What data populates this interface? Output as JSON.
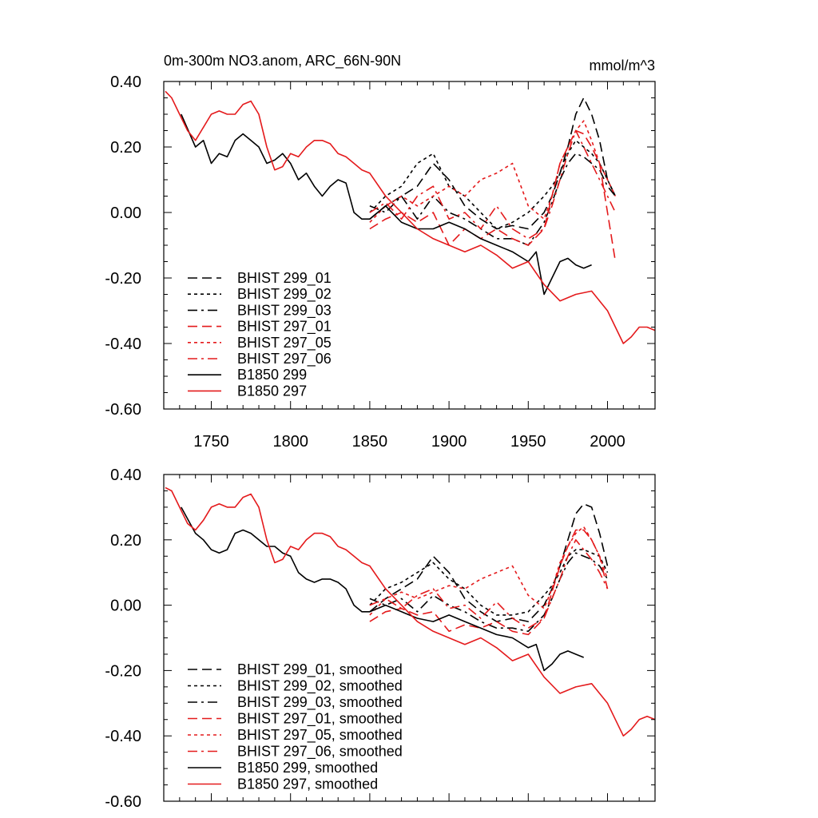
{
  "chart_data": [
    {
      "type": "line",
      "title": "0m-300m NO3.anom, ARC_66N-90N",
      "units": "mmol/m^3",
      "xlabel": "",
      "ylabel": "",
      "xlim": [
        1720,
        2030
      ],
      "ylim": [
        -0.6,
        0.4
      ],
      "xticks": [
        1750,
        1800,
        1850,
        1900,
        1950,
        2000
      ],
      "xtick_labels": [
        "1750",
        "1800",
        "1850",
        "1900",
        "1950",
        "2000"
      ],
      "yticks": [
        0.4,
        0.2,
        0.0,
        -0.2,
        -0.4,
        -0.6
      ],
      "ytick_labels": [
        "0.40",
        "0.20",
        "0.00",
        "-0.20",
        "-0.40",
        "-0.60"
      ],
      "legend_position": "bottom-left",
      "series": [
        {
          "name": "BHIST 299_01",
          "color": "#000000",
          "dash": "long-dash",
          "x": [
            1850,
            1860,
            1870,
            1880,
            1890,
            1900,
            1910,
            1920,
            1930,
            1940,
            1950,
            1960,
            1965,
            1970,
            1975,
            1980,
            1985,
            1990,
            1995,
            2000,
            2005
          ],
          "y": [
            -0.02,
            0.02,
            0.05,
            0.08,
            0.15,
            0.1,
            0.02,
            -0.02,
            -0.05,
            -0.04,
            -0.05,
            0.0,
            0.05,
            0.12,
            0.2,
            0.3,
            0.35,
            0.3,
            0.22,
            0.1,
            0.05
          ]
        },
        {
          "name": "BHIST 299_02",
          "color": "#000000",
          "dash": "short-dash",
          "x": [
            1850,
            1860,
            1870,
            1880,
            1890,
            1900,
            1910,
            1920,
            1930,
            1940,
            1950,
            1960,
            1965,
            1970,
            1975,
            1980,
            1985,
            1990,
            1995,
            2000,
            2005
          ],
          "y": [
            0.0,
            0.05,
            0.08,
            0.15,
            0.18,
            0.08,
            0.05,
            0.0,
            -0.05,
            -0.03,
            0.0,
            0.05,
            0.08,
            0.12,
            0.18,
            0.22,
            0.2,
            0.18,
            0.15,
            0.1,
            0.05
          ]
        },
        {
          "name": "BHIST 299_03",
          "color": "#000000",
          "dash": "dash-dot",
          "x": [
            1850,
            1860,
            1870,
            1880,
            1890,
            1900,
            1910,
            1920,
            1930,
            1940,
            1950,
            1960,
            1965,
            1970,
            1975,
            1980,
            1985,
            1990,
            1995,
            2000,
            2005
          ],
          "y": [
            0.02,
            0.0,
            0.05,
            -0.02,
            0.05,
            0.0,
            -0.02,
            -0.05,
            -0.08,
            -0.08,
            -0.1,
            -0.03,
            0.03,
            0.1,
            0.15,
            0.18,
            0.17,
            0.15,
            0.13,
            0.08,
            0.05
          ]
        },
        {
          "name": "BHIST 297_01",
          "color": "#e41a1c",
          "dash": "long-dash",
          "x": [
            1850,
            1860,
            1870,
            1880,
            1890,
            1900,
            1910,
            1920,
            1930,
            1940,
            1950,
            1960,
            1965,
            1970,
            1975,
            1980,
            1985,
            1990,
            1995,
            2000,
            2005
          ],
          "y": [
            -0.05,
            -0.02,
            0.0,
            -0.03,
            0.0,
            -0.1,
            -0.05,
            -0.08,
            -0.05,
            -0.08,
            -0.1,
            -0.05,
            0.05,
            0.15,
            0.2,
            0.25,
            0.24,
            0.2,
            0.15,
            0.0,
            -0.15
          ]
        },
        {
          "name": "BHIST 297_05",
          "color": "#e41a1c",
          "dash": "short-dash",
          "x": [
            1850,
            1860,
            1870,
            1880,
            1890,
            1900,
            1910,
            1920,
            1930,
            1940,
            1950,
            1960,
            1965,
            1970,
            1975,
            1980,
            1985,
            1990,
            1995,
            2000,
            2005
          ],
          "y": [
            -0.03,
            0.02,
            0.05,
            0.02,
            0.05,
            0.08,
            0.05,
            0.1,
            0.12,
            0.15,
            0.02,
            -0.02,
            0.05,
            0.15,
            0.2,
            0.25,
            0.28,
            0.22,
            0.15,
            0.1,
            0.05
          ]
        },
        {
          "name": "BHIST 297_06",
          "color": "#e41a1c",
          "dash": "dash-dot",
          "x": [
            1850,
            1860,
            1870,
            1880,
            1890,
            1900,
            1910,
            1920,
            1930,
            1940,
            1950,
            1960,
            1965,
            1970,
            1975,
            1980,
            1985,
            1990,
            1995,
            2000,
            2005
          ],
          "y": [
            0.0,
            0.03,
            -0.02,
            0.05,
            0.08,
            -0.02,
            0.0,
            -0.05,
            0.02,
            -0.05,
            -0.08,
            -0.05,
            0.02,
            0.1,
            0.18,
            0.25,
            0.2,
            0.15,
            0.1,
            0.05,
            0.0
          ]
        },
        {
          "name": "B1850 299",
          "color": "#000000",
          "dash": "solid",
          "x": [
            1731,
            1740,
            1745,
            1750,
            1755,
            1760,
            1765,
            1770,
            1775,
            1780,
            1785,
            1790,
            1795,
            1800,
            1805,
            1810,
            1815,
            1820,
            1825,
            1830,
            1835,
            1840,
            1845,
            1850,
            1855,
            1860,
            1870,
            1880,
            1890,
            1900,
            1910,
            1920,
            1930,
            1940,
            1950,
            1955,
            1960,
            1965,
            1970,
            1975,
            1980,
            1985,
            1990
          ],
          "y": [
            0.3,
            0.2,
            0.22,
            0.15,
            0.18,
            0.17,
            0.22,
            0.24,
            0.22,
            0.2,
            0.15,
            0.16,
            0.18,
            0.15,
            0.1,
            0.12,
            0.08,
            0.05,
            0.08,
            0.1,
            0.09,
            0.0,
            -0.02,
            -0.02,
            0.0,
            0.02,
            -0.03,
            -0.05,
            -0.05,
            -0.03,
            -0.05,
            -0.08,
            -0.1,
            -0.12,
            -0.15,
            -0.12,
            -0.25,
            -0.2,
            -0.15,
            -0.14,
            -0.16,
            -0.17,
            -0.16
          ]
        },
        {
          "name": "B1850 297",
          "color": "#e41a1c",
          "dash": "solid",
          "x": [
            1721,
            1725,
            1730,
            1735,
            1740,
            1745,
            1750,
            1755,
            1760,
            1765,
            1770,
            1775,
            1780,
            1785,
            1790,
            1795,
            1800,
            1805,
            1810,
            1815,
            1820,
            1825,
            1830,
            1835,
            1840,
            1845,
            1850,
            1860,
            1870,
            1880,
            1890,
            1900,
            1910,
            1920,
            1930,
            1940,
            1950,
            1960,
            1970,
            1980,
            1990,
            2000,
            2005,
            2010,
            2015,
            2020,
            2025,
            2030
          ],
          "y": [
            0.37,
            0.35,
            0.3,
            0.25,
            0.22,
            0.26,
            0.3,
            0.31,
            0.3,
            0.3,
            0.33,
            0.34,
            0.3,
            0.2,
            0.13,
            0.14,
            0.18,
            0.17,
            0.2,
            0.22,
            0.22,
            0.21,
            0.18,
            0.17,
            0.15,
            0.13,
            0.12,
            0.05,
            0.0,
            -0.05,
            -0.08,
            -0.1,
            -0.12,
            -0.1,
            -0.13,
            -0.17,
            -0.15,
            -0.22,
            -0.27,
            -0.25,
            -0.24,
            -0.3,
            -0.35,
            -0.4,
            -0.38,
            -0.35,
            -0.35,
            -0.36
          ]
        }
      ]
    },
    {
      "type": "line",
      "title": "",
      "units": "",
      "xlabel": "",
      "ylabel": "",
      "xlim": [
        1720,
        2030
      ],
      "ylim": [
        -0.6,
        0.4
      ],
      "xticks": [
        1750,
        1800,
        1850,
        1900,
        1950,
        2000
      ],
      "xtick_labels": [],
      "yticks": [
        0.4,
        0.2,
        0.0,
        -0.2,
        -0.4,
        -0.6
      ],
      "ytick_labels": [
        "0.40",
        "0.20",
        "0.00",
        "-0.20",
        "-0.40",
        "-0.60"
      ],
      "legend_position": "bottom-left",
      "series": [
        {
          "name": "BHIST 299_01, smoothed",
          "color": "#000000",
          "dash": "long-dash",
          "x": [
            1850,
            1860,
            1870,
            1880,
            1890,
            1900,
            1910,
            1920,
            1930,
            1940,
            1950,
            1960,
            1965,
            1970,
            1975,
            1980,
            1985,
            1990,
            1995,
            2000
          ],
          "y": [
            -0.02,
            0.02,
            0.05,
            0.08,
            0.15,
            0.1,
            0.02,
            -0.02,
            -0.05,
            -0.04,
            -0.05,
            0.0,
            0.05,
            0.12,
            0.2,
            0.28,
            0.31,
            0.3,
            0.22,
            0.12
          ]
        },
        {
          "name": "BHIST 299_02, smoothed",
          "color": "#000000",
          "dash": "short-dash",
          "x": [
            1850,
            1860,
            1870,
            1880,
            1890,
            1900,
            1910,
            1920,
            1930,
            1940,
            1950,
            1960,
            1965,
            1970,
            1975,
            1980,
            1985,
            1990,
            1995,
            2000
          ],
          "y": [
            0.0,
            0.05,
            0.07,
            0.1,
            0.13,
            0.08,
            0.05,
            0.0,
            -0.03,
            -0.03,
            -0.02,
            0.03,
            0.06,
            0.1,
            0.15,
            0.17,
            0.17,
            0.16,
            0.15,
            0.1
          ]
        },
        {
          "name": "BHIST 299_03, smoothed",
          "color": "#000000",
          "dash": "dash-dot",
          "x": [
            1850,
            1860,
            1870,
            1880,
            1890,
            1900,
            1910,
            1920,
            1930,
            1940,
            1950,
            1960,
            1965,
            1970,
            1975,
            1980,
            1985,
            1990,
            1995,
            2000
          ],
          "y": [
            0.02,
            0.0,
            0.02,
            -0.02,
            0.03,
            0.0,
            -0.02,
            -0.05,
            -0.07,
            -0.07,
            -0.08,
            -0.03,
            0.02,
            0.08,
            0.13,
            0.16,
            0.15,
            0.14,
            0.12,
            0.08
          ]
        },
        {
          "name": "BHIST 297_01, smoothed",
          "color": "#e41a1c",
          "dash": "long-dash",
          "x": [
            1850,
            1860,
            1870,
            1880,
            1890,
            1900,
            1910,
            1920,
            1930,
            1940,
            1950,
            1960,
            1965,
            1970,
            1975,
            1980,
            1985,
            1990,
            1995,
            2000
          ],
          "y": [
            -0.05,
            -0.02,
            -0.01,
            -0.03,
            -0.02,
            -0.08,
            -0.06,
            -0.07,
            -0.05,
            -0.08,
            -0.09,
            -0.04,
            0.04,
            0.12,
            0.18,
            0.23,
            0.23,
            0.2,
            0.15,
            0.05
          ]
        },
        {
          "name": "BHIST 297_05, smoothed",
          "color": "#e41a1c",
          "dash": "short-dash",
          "x": [
            1850,
            1860,
            1870,
            1880,
            1890,
            1900,
            1910,
            1920,
            1930,
            1940,
            1950,
            1960,
            1965,
            1970,
            1975,
            1980,
            1985,
            1990,
            1995,
            2000
          ],
          "y": [
            -0.03,
            0.02,
            0.04,
            0.02,
            0.04,
            0.06,
            0.05,
            0.08,
            0.1,
            0.12,
            0.03,
            -0.01,
            0.05,
            0.13,
            0.18,
            0.22,
            0.24,
            0.2,
            0.15,
            0.08
          ]
        },
        {
          "name": "BHIST 297_06, smoothed",
          "color": "#e41a1c",
          "dash": "dash-dot",
          "x": [
            1850,
            1860,
            1870,
            1880,
            1890,
            1900,
            1910,
            1920,
            1930,
            1940,
            1950,
            1960,
            1965,
            1970,
            1975,
            1980,
            1985,
            1990,
            1995,
            2000
          ],
          "y": [
            0.0,
            0.02,
            -0.01,
            0.03,
            0.05,
            -0.01,
            0.0,
            -0.04,
            0.01,
            -0.04,
            -0.07,
            -0.04,
            0.02,
            0.08,
            0.15,
            0.2,
            0.17,
            0.14,
            0.1,
            0.05
          ]
        },
        {
          "name": "B1850 299, smoothed",
          "color": "#000000",
          "dash": "solid",
          "x": [
            1731,
            1740,
            1745,
            1750,
            1755,
            1760,
            1765,
            1770,
            1775,
            1780,
            1785,
            1790,
            1795,
            1800,
            1805,
            1810,
            1815,
            1820,
            1825,
            1830,
            1835,
            1840,
            1845,
            1850,
            1860,
            1870,
            1880,
            1890,
            1900,
            1910,
            1920,
            1930,
            1940,
            1950,
            1955,
            1960,
            1965,
            1970,
            1975,
            1980,
            1985
          ],
          "y": [
            0.3,
            0.22,
            0.2,
            0.17,
            0.16,
            0.17,
            0.22,
            0.23,
            0.22,
            0.2,
            0.18,
            0.18,
            0.16,
            0.15,
            0.1,
            0.08,
            0.07,
            0.08,
            0.08,
            0.07,
            0.05,
            0.0,
            -0.02,
            -0.02,
            0.0,
            -0.02,
            -0.04,
            -0.05,
            -0.03,
            -0.05,
            -0.07,
            -0.09,
            -0.1,
            -0.13,
            -0.12,
            -0.2,
            -0.18,
            -0.15,
            -0.14,
            -0.15,
            -0.16
          ]
        },
        {
          "name": "B1850 297, smoothed",
          "color": "#e41a1c",
          "dash": "solid",
          "x": [
            1721,
            1725,
            1730,
            1735,
            1740,
            1745,
            1750,
            1755,
            1760,
            1765,
            1770,
            1775,
            1780,
            1785,
            1790,
            1795,
            1800,
            1805,
            1810,
            1815,
            1820,
            1825,
            1830,
            1835,
            1840,
            1845,
            1850,
            1860,
            1870,
            1880,
            1890,
            1900,
            1910,
            1920,
            1930,
            1940,
            1950,
            1960,
            1970,
            1980,
            1990,
            2000,
            2005,
            2010,
            2015,
            2020,
            2025,
            2030
          ],
          "y": [
            0.36,
            0.35,
            0.3,
            0.25,
            0.23,
            0.26,
            0.3,
            0.31,
            0.3,
            0.3,
            0.33,
            0.34,
            0.3,
            0.2,
            0.13,
            0.14,
            0.18,
            0.17,
            0.2,
            0.22,
            0.22,
            0.21,
            0.18,
            0.17,
            0.15,
            0.13,
            0.12,
            0.05,
            0.0,
            -0.05,
            -0.08,
            -0.1,
            -0.12,
            -0.1,
            -0.13,
            -0.17,
            -0.15,
            -0.22,
            -0.27,
            -0.25,
            -0.24,
            -0.3,
            -0.35,
            -0.4,
            -0.38,
            -0.35,
            -0.34,
            -0.35
          ]
        }
      ]
    }
  ]
}
